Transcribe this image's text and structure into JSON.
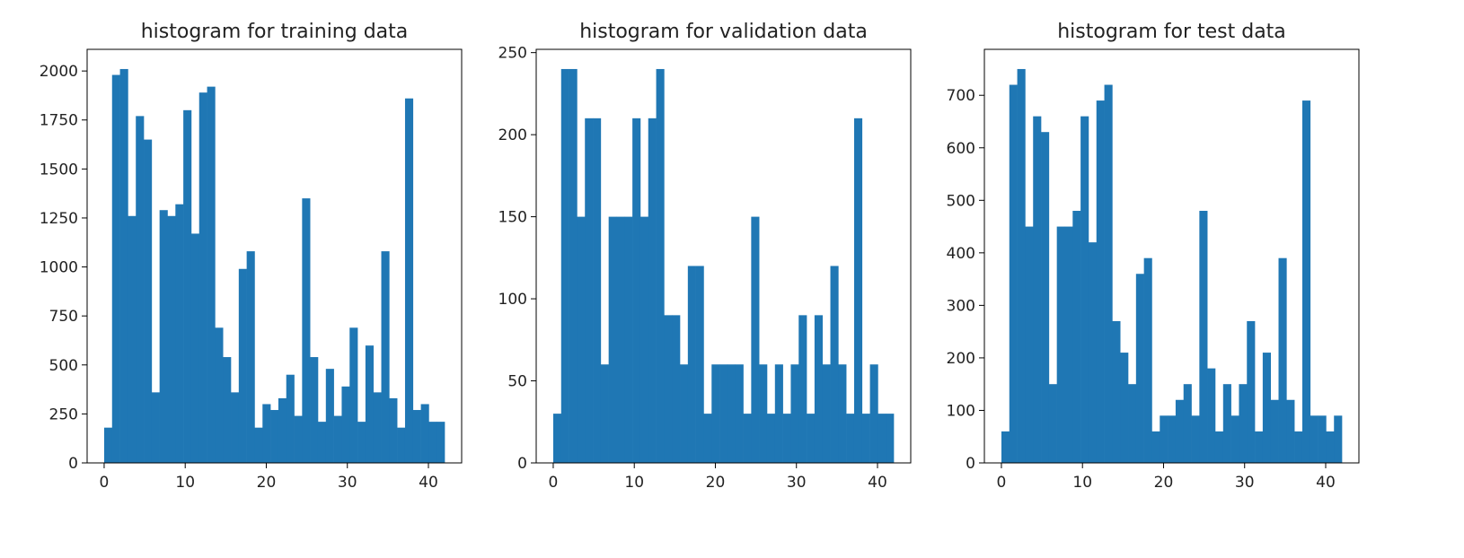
{
  "chart_data": [
    {
      "type": "histogram",
      "title": "histogram for training data",
      "color": "#1f77b4",
      "bins": [
        0,
        0.9767,
        1.9535,
        2.9302,
        3.907,
        4.8837,
        5.8605,
        6.8372,
        7.814,
        8.7907,
        9.7674,
        10.7442,
        11.7209,
        12.6977,
        13.6744,
        14.6512,
        15.6279,
        16.6047,
        17.5814,
        18.5581,
        19.5349,
        20.5116,
        21.4884,
        22.4651,
        23.4419,
        24.4186,
        25.3953,
        26.3721,
        27.3488,
        28.3256,
        29.3023,
        30.2791,
        31.2558,
        32.2326,
        33.2093,
        34.186,
        35.1628,
        36.1395,
        37.1163,
        38.093,
        39.0698,
        40.0465,
        41.0233,
        42
      ],
      "values": [
        180,
        1980,
        2010,
        1260,
        1770,
        1650,
        360,
        1290,
        1260,
        1320,
        1800,
        1170,
        1890,
        1920,
        690,
        540,
        360,
        990,
        1080,
        180,
        300,
        270,
        330,
        450,
        240,
        1350,
        540,
        210,
        480,
        240,
        390,
        690,
        210,
        599,
        360,
        1080,
        330,
        180,
        1860,
        270,
        300,
        210,
        210
      ],
      "xlim": [
        -2.1,
        44.1
      ],
      "xticks": [
        0,
        10,
        20,
        30,
        40
      ],
      "ylim": [
        0,
        2110.5
      ],
      "yticks": [
        0,
        250,
        500,
        750,
        1000,
        1250,
        1500,
        1750,
        2000
      ]
    },
    {
      "type": "histogram",
      "title": "histogram for validation data",
      "color": "#1f77b4",
      "bins": [
        0,
        0.9767,
        1.9535,
        2.9302,
        3.907,
        4.8837,
        5.8605,
        6.8372,
        7.814,
        8.7907,
        9.7674,
        10.7442,
        11.7209,
        12.6977,
        13.6744,
        14.6512,
        15.6279,
        16.6047,
        17.5814,
        18.5581,
        19.5349,
        20.5116,
        21.4884,
        22.4651,
        23.4419,
        24.4186,
        25.3953,
        26.3721,
        27.3488,
        28.3256,
        29.3023,
        30.2791,
        31.2558,
        32.2326,
        33.2093,
        34.186,
        35.1628,
        36.1395,
        37.1163,
        38.093,
        39.0698,
        40.0465,
        41.0233,
        42
      ],
      "values": [
        30,
        240,
        240,
        150,
        210,
        210,
        60,
        150,
        150,
        150,
        210,
        150,
        210,
        240,
        90,
        90,
        60,
        120,
        120,
        30,
        60,
        60,
        60,
        60,
        30,
        150,
        60,
        30,
        60,
        30,
        60,
        90,
        30,
        90,
        60,
        120,
        60,
        30,
        210,
        30,
        60,
        30,
        30
      ],
      "xlim": [
        -2.1,
        44.1
      ],
      "xticks": [
        0,
        10,
        20,
        30,
        40
      ],
      "ylim": [
        0,
        252
      ],
      "yticks": [
        0,
        50,
        100,
        150,
        200,
        250
      ]
    },
    {
      "type": "histogram",
      "title": "histogram for test data",
      "color": "#1f77b4",
      "bins": [
        0,
        0.9767,
        1.9535,
        2.9302,
        3.907,
        4.8837,
        5.8605,
        6.8372,
        7.814,
        8.7907,
        9.7674,
        10.7442,
        11.7209,
        12.6977,
        13.6744,
        14.6512,
        15.6279,
        16.6047,
        17.5814,
        18.5581,
        19.5349,
        20.5116,
        21.4884,
        22.4651,
        23.4419,
        24.4186,
        25.3953,
        26.3721,
        27.3488,
        28.3256,
        29.3023,
        30.2791,
        31.2558,
        32.2326,
        33.2093,
        34.186,
        35.1628,
        36.1395,
        37.1163,
        38.093,
        39.0698,
        40.0465,
        41.0233,
        42
      ],
      "values": [
        60,
        720,
        750,
        450,
        660,
        630,
        150,
        450,
        450,
        480,
        660,
        420,
        690,
        720,
        270,
        210,
        150,
        360,
        390,
        60,
        90,
        90,
        120,
        150,
        90,
        480,
        180,
        60,
        150,
        90,
        150,
        270,
        60,
        210,
        120,
        390,
        120,
        60,
        690,
        90,
        90,
        60,
        90
      ],
      "xlim": [
        -2.1,
        44.1
      ],
      "xticks": [
        0,
        10,
        20,
        30,
        40
      ],
      "ylim": [
        0,
        787.5
      ],
      "yticks": [
        0,
        100,
        200,
        300,
        400,
        500,
        600,
        700
      ]
    }
  ]
}
